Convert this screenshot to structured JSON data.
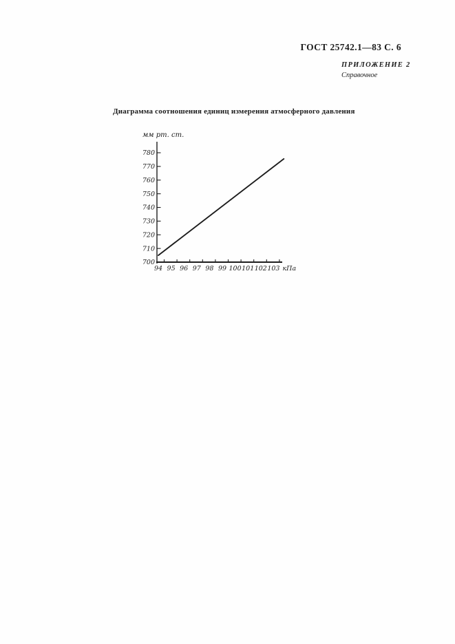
{
  "page": {
    "header": "ГОСТ 25742.1—83 С. 6",
    "appendix_label": "ПРИЛОЖЕНИЕ 2",
    "appendix_note": "Справочное",
    "title": "Диаграмма соотношения единиц измерения атмосферного давления"
  },
  "chart_data": {
    "type": "line",
    "title": "Диаграмма соотношения единиц измерения атмосферного давления",
    "xlabel": "кПа",
    "ylabel": "мм рт. ст.",
    "x_ticks": [
      94,
      95,
      96,
      97,
      98,
      99,
      100,
      101,
      102,
      103
    ],
    "y_ticks": [
      700,
      710,
      720,
      730,
      740,
      750,
      760,
      770,
      780
    ],
    "xlim": [
      94,
      104
    ],
    "ylim": [
      700,
      788
    ],
    "grid": false,
    "legend": "none",
    "series": [
      {
        "x": [
          94,
          103.8
        ],
        "y": [
          705,
          775.5
        ]
      }
    ]
  },
  "colors": {
    "ink": "#1c1c1c",
    "paper": "#fefefe"
  }
}
